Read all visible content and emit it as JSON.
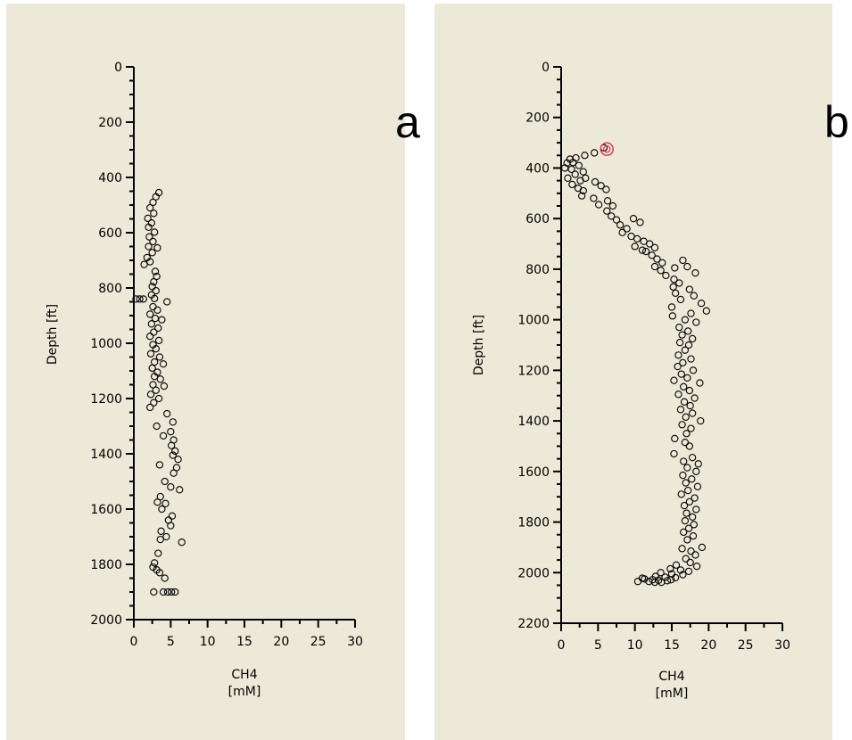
{
  "labels": {
    "a": "a",
    "b": "b"
  },
  "chart_data": [
    {
      "type": "scatter",
      "xlabel": "CH4",
      "xunit": "[mM]",
      "ylabel": "Depth [ft]",
      "xlim": [
        0,
        30
      ],
      "ylim": [
        0,
        2000
      ],
      "y_inverted": true,
      "xticks": [
        0,
        5,
        10,
        15,
        20,
        25,
        30
      ],
      "yticks": [
        0,
        200,
        400,
        600,
        800,
        1000,
        1200,
        1400,
        1600,
        1800,
        2000
      ],
      "marker_color": "#000000",
      "points": [
        [
          3.4,
          455
        ],
        [
          3.0,
          470
        ],
        [
          2.6,
          490
        ],
        [
          2.2,
          510
        ],
        [
          2.7,
          530
        ],
        [
          1.9,
          548
        ],
        [
          2.4,
          565
        ],
        [
          2.0,
          580
        ],
        [
          2.8,
          598
        ],
        [
          2.1,
          615
        ],
        [
          2.6,
          632
        ],
        [
          2.0,
          650
        ],
        [
          3.2,
          655
        ],
        [
          2.5,
          672
        ],
        [
          1.8,
          690
        ],
        [
          2.2,
          705
        ],
        [
          1.4,
          715
        ],
        [
          2.9,
          740
        ],
        [
          3.1,
          758
        ],
        [
          2.7,
          778
        ],
        [
          2.5,
          795
        ],
        [
          3.0,
          810
        ],
        [
          2.4,
          825
        ],
        [
          0.3,
          840
        ],
        [
          0.8,
          840
        ],
        [
          1.3,
          840
        ],
        [
          2.8,
          838
        ],
        [
          4.5,
          850
        ],
        [
          2.6,
          868
        ],
        [
          3.2,
          880
        ],
        [
          2.2,
          895
        ],
        [
          2.9,
          910
        ],
        [
          3.8,
          915
        ],
        [
          2.4,
          930
        ],
        [
          3.3,
          945
        ],
        [
          2.7,
          960
        ],
        [
          2.2,
          975
        ],
        [
          3.4,
          990
        ],
        [
          2.6,
          1005
        ],
        [
          3.0,
          1020
        ],
        [
          2.3,
          1038
        ],
        [
          3.5,
          1050
        ],
        [
          2.8,
          1068
        ],
        [
          4.0,
          1075
        ],
        [
          2.5,
          1090
        ],
        [
          3.2,
          1105
        ],
        [
          2.8,
          1120
        ],
        [
          3.6,
          1130
        ],
        [
          2.6,
          1150
        ],
        [
          4.1,
          1155
        ],
        [
          3.0,
          1170
        ],
        [
          2.3,
          1185
        ],
        [
          3.4,
          1200
        ],
        [
          2.7,
          1215
        ],
        [
          2.2,
          1232
        ],
        [
          4.5,
          1255
        ],
        [
          5.3,
          1285
        ],
        [
          3.1,
          1300
        ],
        [
          5.0,
          1320
        ],
        [
          4.0,
          1335
        ],
        [
          5.4,
          1350
        ],
        [
          5.1,
          1370
        ],
        [
          5.6,
          1390
        ],
        [
          5.3,
          1405
        ],
        [
          6.0,
          1420
        ],
        [
          3.5,
          1440
        ],
        [
          5.8,
          1450
        ],
        [
          5.4,
          1470
        ],
        [
          4.2,
          1500
        ],
        [
          6.2,
          1530
        ],
        [
          5.0,
          1520
        ],
        [
          3.6,
          1555
        ],
        [
          3.2,
          1575
        ],
        [
          4.3,
          1580
        ],
        [
          3.8,
          1600
        ],
        [
          5.2,
          1625
        ],
        [
          4.7,
          1640
        ],
        [
          5.0,
          1660
        ],
        [
          3.7,
          1680
        ],
        [
          4.4,
          1700
        ],
        [
          3.6,
          1710
        ],
        [
          6.5,
          1720
        ],
        [
          3.3,
          1760
        ],
        [
          2.8,
          1795
        ],
        [
          2.6,
          1810
        ],
        [
          3.1,
          1820
        ],
        [
          3.5,
          1830
        ],
        [
          4.2,
          1850
        ],
        [
          2.7,
          1900
        ],
        [
          4.0,
          1900
        ],
        [
          4.6,
          1900
        ],
        [
          5.1,
          1900
        ],
        [
          5.6,
          1900
        ]
      ]
    },
    {
      "type": "scatter",
      "xlabel": "CH4",
      "xunit": "[mM]",
      "ylabel": "Depth [ft]",
      "xlim": [
        0,
        30
      ],
      "ylim": [
        0,
        2200
      ],
      "y_inverted": true,
      "xticks": [
        0,
        5,
        10,
        15,
        20,
        25,
        30
      ],
      "yticks": [
        0,
        200,
        400,
        600,
        800,
        1000,
        1200,
        1400,
        1600,
        1800,
        2000,
        2200
      ],
      "marker_color": "#000000",
      "highlight_color": "#e0304a",
      "highlight_point": [
        6.2,
        325
      ],
      "points": [
        [
          5.8,
          320
        ],
        [
          4.5,
          340
        ],
        [
          3.2,
          350
        ],
        [
          2.0,
          360
        ],
        [
          1.2,
          365
        ],
        [
          0.8,
          380
        ],
        [
          1.6,
          378
        ],
        [
          2.4,
          390
        ],
        [
          0.5,
          400
        ],
        [
          1.4,
          405
        ],
        [
          3.0,
          415
        ],
        [
          1.9,
          425
        ],
        [
          0.9,
          440
        ],
        [
          2.6,
          450
        ],
        [
          3.3,
          440
        ],
        [
          1.5,
          465
        ],
        [
          4.6,
          455
        ],
        [
          2.3,
          480
        ],
        [
          5.4,
          470
        ],
        [
          3.0,
          490
        ],
        [
          6.1,
          485
        ],
        [
          2.8,
          510
        ],
        [
          4.4,
          520
        ],
        [
          6.3,
          530
        ],
        [
          5.1,
          545
        ],
        [
          7.0,
          550
        ],
        [
          6.2,
          570
        ],
        [
          6.8,
          590
        ],
        [
          7.5,
          605
        ],
        [
          9.8,
          600
        ],
        [
          10.7,
          615
        ],
        [
          8.0,
          625
        ],
        [
          8.9,
          640
        ],
        [
          8.3,
          655
        ],
        [
          9.5,
          670
        ],
        [
          10.3,
          680
        ],
        [
          11.2,
          690
        ],
        [
          12.0,
          700
        ],
        [
          10.0,
          710
        ],
        [
          12.7,
          715
        ],
        [
          11.5,
          730
        ],
        [
          12.3,
          745
        ],
        [
          13.0,
          760
        ],
        [
          11.0,
          725
        ],
        [
          13.7,
          775
        ],
        [
          12.7,
          790
        ],
        [
          16.5,
          765
        ],
        [
          13.5,
          805
        ],
        [
          15.4,
          795
        ],
        [
          17.1,
          790
        ],
        [
          14.2,
          825
        ],
        [
          18.2,
          815
        ],
        [
          15.3,
          840
        ],
        [
          16.0,
          855
        ],
        [
          15.2,
          870
        ],
        [
          17.4,
          880
        ],
        [
          15.5,
          895
        ],
        [
          18.0,
          905
        ],
        [
          16.2,
          920
        ],
        [
          19.0,
          935
        ],
        [
          15.0,
          950
        ],
        [
          19.7,
          965
        ],
        [
          17.6,
          975
        ],
        [
          15.1,
          985
        ],
        [
          16.8,
          1000
        ],
        [
          18.3,
          1010
        ],
        [
          16.0,
          1030
        ],
        [
          17.2,
          1045
        ],
        [
          16.4,
          1060
        ],
        [
          17.8,
          1075
        ],
        [
          16.1,
          1090
        ],
        [
          17.3,
          1100
        ],
        [
          16.8,
          1120
        ],
        [
          15.9,
          1140
        ],
        [
          17.6,
          1155
        ],
        [
          16.5,
          1170
        ],
        [
          15.8,
          1185
        ],
        [
          17.9,
          1200
        ],
        [
          16.3,
          1215
        ],
        [
          17.1,
          1230
        ],
        [
          15.3,
          1240
        ],
        [
          18.8,
          1250
        ],
        [
          16.6,
          1265
        ],
        [
          17.4,
          1280
        ],
        [
          15.9,
          1295
        ],
        [
          18.1,
          1310
        ],
        [
          16.7,
          1325
        ],
        [
          17.5,
          1340
        ],
        [
          16.2,
          1355
        ],
        [
          17.8,
          1370
        ],
        [
          16.9,
          1385
        ],
        [
          18.9,
          1400
        ],
        [
          16.4,
          1415
        ],
        [
          17.6,
          1430
        ],
        [
          17.0,
          1450
        ],
        [
          15.4,
          1470
        ],
        [
          16.8,
          1485
        ],
        [
          17.4,
          1500
        ],
        [
          15.3,
          1530
        ],
        [
          17.8,
          1545
        ],
        [
          16.6,
          1560
        ],
        [
          18.6,
          1570
        ],
        [
          17.1,
          1585
        ],
        [
          18.3,
          1600
        ],
        [
          16.5,
          1615
        ],
        [
          17.7,
          1630
        ],
        [
          16.9,
          1645
        ],
        [
          18.5,
          1660
        ],
        [
          17.2,
          1675
        ],
        [
          16.3,
          1690
        ],
        [
          18.1,
          1705
        ],
        [
          17.4,
          1720
        ],
        [
          16.7,
          1735
        ],
        [
          18.3,
          1750
        ],
        [
          17.0,
          1765
        ],
        [
          17.8,
          1780
        ],
        [
          16.8,
          1795
        ],
        [
          18.0,
          1810
        ],
        [
          17.3,
          1825
        ],
        [
          16.6,
          1840
        ],
        [
          17.9,
          1855
        ],
        [
          17.1,
          1870
        ],
        [
          19.1,
          1900
        ],
        [
          16.4,
          1905
        ],
        [
          17.6,
          1915
        ],
        [
          18.2,
          1930
        ],
        [
          16.9,
          1945
        ],
        [
          17.5,
          1960
        ],
        [
          15.6,
          1970
        ],
        [
          18.4,
          1975
        ],
        [
          14.8,
          1985
        ],
        [
          16.2,
          1990
        ],
        [
          17.3,
          1995
        ],
        [
          13.5,
          2000
        ],
        [
          15.0,
          2005
        ],
        [
          16.5,
          2008
        ],
        [
          12.8,
          2015
        ],
        [
          14.1,
          2018
        ],
        [
          15.5,
          2020
        ],
        [
          11.3,
          2025
        ],
        [
          12.4,
          2028
        ],
        [
          13.2,
          2030
        ],
        [
          14.4,
          2032
        ],
        [
          10.4,
          2035
        ],
        [
          11.9,
          2035
        ],
        [
          12.7,
          2038
        ],
        [
          13.6,
          2038
        ],
        [
          11.0,
          2022
        ],
        [
          14.9,
          2028
        ]
      ]
    }
  ]
}
